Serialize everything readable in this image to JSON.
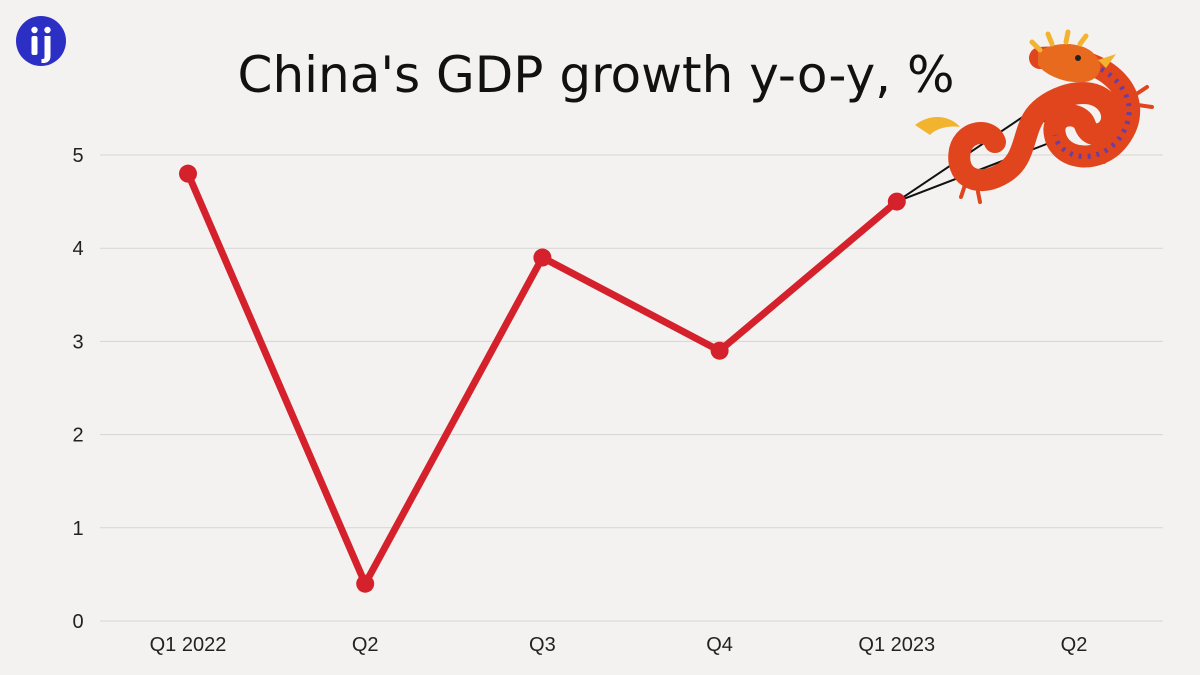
{
  "logo": {
    "icon": "info-icon",
    "color": "#2c2fc4"
  },
  "chart_data": {
    "type": "line",
    "title": "China's GDP growth y-o-y, %",
    "xlabel": "",
    "ylabel": "",
    "categories": [
      "Q1 2022",
      "Q2",
      "Q3",
      "Q4",
      "Q1 2023",
      "Q2"
    ],
    "series": [
      {
        "values": [
          4.8,
          0.4,
          3.9,
          2.9,
          4.5,
          null
        ],
        "color": "#d4212b"
      }
    ],
    "ylim": [
      0,
      5
    ],
    "yticks": [
      0,
      1,
      2,
      3,
      4,
      5
    ],
    "grid": true,
    "legend": "none",
    "annotation": {
      "icon": "dragon-kite-icon",
      "attached_to": "Q1 2023"
    }
  }
}
